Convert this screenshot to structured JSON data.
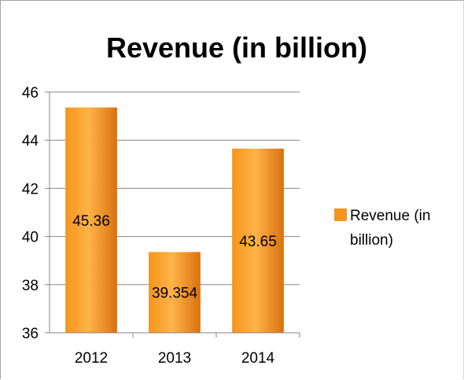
{
  "chart_data": {
    "type": "bar",
    "title": "Revenue (in billion)",
    "xlabel": "",
    "ylabel": "",
    "categories": [
      "2012",
      "2013",
      "2014"
    ],
    "series": [
      {
        "name": "Revenue (in billion)",
        "values": [
          45.36,
          39.354,
          43.65
        ],
        "value_labels": [
          "45.36",
          "39.354",
          "43.65"
        ],
        "color": "#f28c1e"
      }
    ],
    "ylim": [
      36,
      46
    ],
    "y_ticks": [
      36,
      38,
      40,
      42,
      44,
      46
    ],
    "grid": true,
    "legend": {
      "placement": "right",
      "lines": [
        "Revenue (in",
        "billion)"
      ]
    },
    "colors": {
      "bar_light": "#ffb347",
      "bar_mid": "#f7941d",
      "bar_dark": "#d9710f",
      "axis": "#868686",
      "grid": "#868686"
    }
  }
}
